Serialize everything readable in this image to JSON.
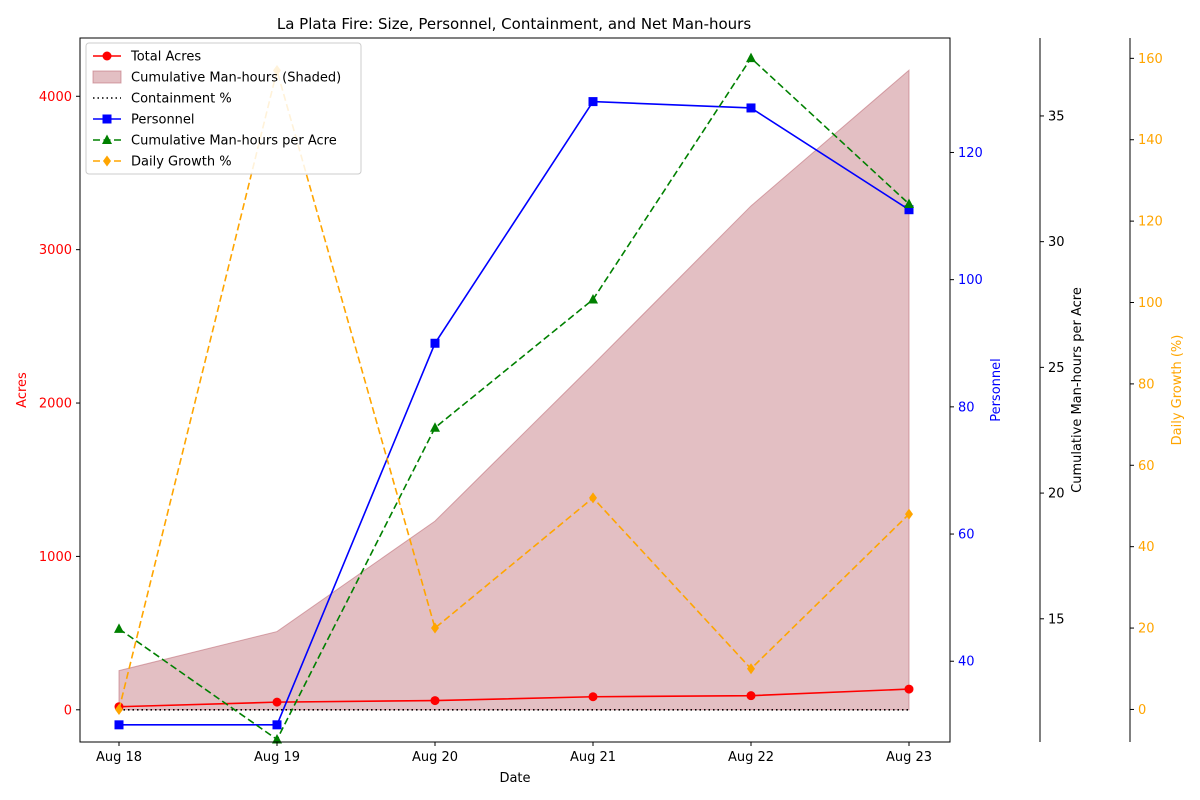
{
  "chart_data": {
    "type": "line",
    "title": "La Plata Fire: Size, Personnel, Containment, and Net Man-hours",
    "xlabel": "Date",
    "categories": [
      "Aug 18",
      "Aug 19",
      "Aug 20",
      "Aug 21",
      "Aug 22",
      "Aug 23"
    ],
    "legend_position": "top-left",
    "axes": {
      "acres": {
        "label": "Acres",
        "color": "#ff0000",
        "range": [
          -210,
          4380
        ],
        "ticks": [
          0,
          1000,
          2000,
          3000,
          4000
        ]
      },
      "personnel": {
        "label": "Personnel",
        "color": "#0000ff",
        "range": [
          27.3,
          138
        ],
        "ticks": [
          40,
          60,
          80,
          100,
          120
        ]
      },
      "mh_per_acre": {
        "label": "Cumulative Man-hours per Acre",
        "color": "#000000",
        "range": [
          10.1,
          38.1
        ],
        "ticks": [
          15,
          20,
          25,
          30,
          35
        ]
      },
      "growth": {
        "label": "Daily Growth (%)",
        "color": "#ffa500",
        "range": [
          -8,
          165
        ],
        "ticks": [
          0,
          20,
          40,
          60,
          80,
          100,
          120,
          140,
          160
        ]
      }
    },
    "series": [
      {
        "name": "Total Acres",
        "axis": "acres",
        "style": "line",
        "marker": "circle",
        "color": "#ff0000",
        "values": [
          20,
          50,
          60,
          85,
          92,
          135
        ]
      },
      {
        "name": "Cumulative Man-hours (Shaded)",
        "axis": "acres",
        "style": "area",
        "color": "#c0707a",
        "values": [
          255,
          510,
          1230,
          2250,
          3285,
          4170
        ]
      },
      {
        "name": "Containment %",
        "axis": "acres",
        "style": "dotted",
        "marker": "",
        "color": "#000000",
        "values": [
          0,
          0,
          0,
          0,
          0,
          0
        ]
      },
      {
        "name": "Personnel",
        "axis": "personnel",
        "style": "line",
        "marker": "square",
        "color": "#0000ff",
        "values": [
          30,
          30,
          90,
          128,
          127,
          111
        ]
      },
      {
        "name": "Cumulative Man-hours per Acre",
        "axis": "mh_per_acre",
        "style": "dashed",
        "marker": "triangle",
        "color": "#008000",
        "values": [
          14.6,
          10.2,
          22.6,
          27.7,
          37.3,
          31.5
        ]
      },
      {
        "name": "Daily Growth %",
        "axis": "growth",
        "style": "dashed",
        "marker": "diamond",
        "color": "#ffa500",
        "values": [
          0,
          157,
          20,
          52,
          10,
          48
        ]
      }
    ]
  }
}
